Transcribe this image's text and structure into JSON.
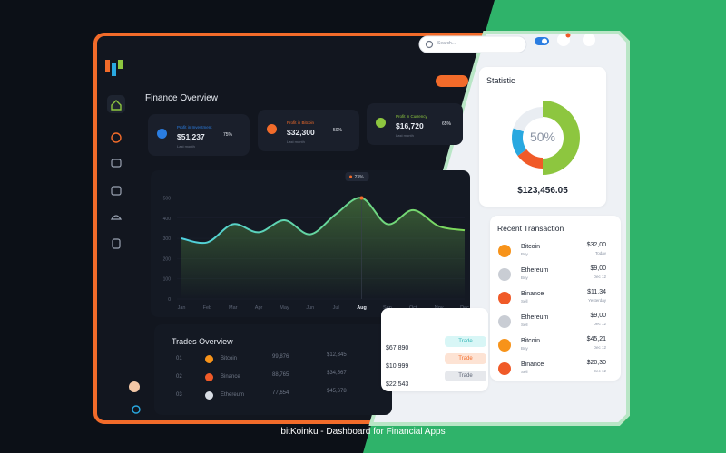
{
  "app": {
    "search_placeholder": "Search...",
    "caption": "bitKoinku - Dashboard for Financial Apps"
  },
  "finance_overview": {
    "title": "Finance Overview",
    "cards": [
      {
        "label": "Profit in Investment",
        "amount": "$51,237",
        "note": "Last month",
        "ring": {
          "value": 75,
          "label": "75%"
        }
      },
      {
        "label": "Profit in Bitcoin",
        "amount": "$32,300",
        "note": "Last month",
        "ring": {
          "value": 50,
          "label": "50%"
        }
      },
      {
        "label": "Profit in Currency",
        "amount": "$16,720",
        "note": "Last month",
        "ring": {
          "value": 65,
          "label": "65%"
        }
      }
    ],
    "chart": {
      "type": "line",
      "categories": [
        "Jan",
        "Feb",
        "Mar",
        "Apr",
        "May",
        "Jun",
        "Jul",
        "Aug",
        "Sep",
        "Oct",
        "Nov",
        "Dec"
      ],
      "values": [
        300,
        280,
        370,
        330,
        390,
        320,
        420,
        500,
        370,
        440,
        360,
        340
      ],
      "ylim": [
        0,
        520
      ],
      "yticks": [
        0,
        100,
        200,
        300,
        400,
        500
      ],
      "tooltip": "23%",
      "color": "#7ed957"
    }
  },
  "trades_overview": {
    "title": "Trades Overview",
    "rows": [
      [
        "01",
        "Bitcoin",
        "99,876",
        "$12,345",
        "$67,890",
        "Trade"
      ],
      [
        "02",
        "Binance",
        "88,765",
        "$34,567",
        "$10,999",
        "Trade"
      ],
      [
        "03",
        "Ethereum",
        "77,654",
        "$45,678",
        "$22,543",
        "Trade"
      ]
    ]
  },
  "statistic": {
    "title": "Statistic",
    "segments": [
      {
        "value": 50,
        "color": "#8dc63f"
      },
      {
        "value": 15,
        "color": "#f05a28"
      },
      {
        "value": 15,
        "color": "#29a8e0"
      },
      {
        "value": 20,
        "color": "#e9edf2"
      }
    ],
    "center_label": "50%",
    "total": "$123,456.05"
  },
  "recent_transactions": {
    "title": "Recent Transaction",
    "items": [
      {
        "coin": "Bitcoin",
        "type": "Buy",
        "amount": "$32,00",
        "date": "Today"
      },
      {
        "coin": "Ethereum",
        "type": "Buy",
        "amount": "$9,00",
        "date": "Dec 12"
      },
      {
        "coin": "Binance",
        "type": "Sell",
        "amount": "$11,34",
        "date": "Yesterday"
      },
      {
        "coin": "Ethereum",
        "type": "Sell",
        "amount": "$9,00",
        "date": "Dec 12"
      },
      {
        "coin": "Bitcoin",
        "type": "Buy",
        "amount": "$45,21",
        "date": "Dec 12"
      },
      {
        "coin": "Binance",
        "type": "Sell",
        "amount": "$20,30",
        "date": "Dec 12"
      }
    ]
  }
}
